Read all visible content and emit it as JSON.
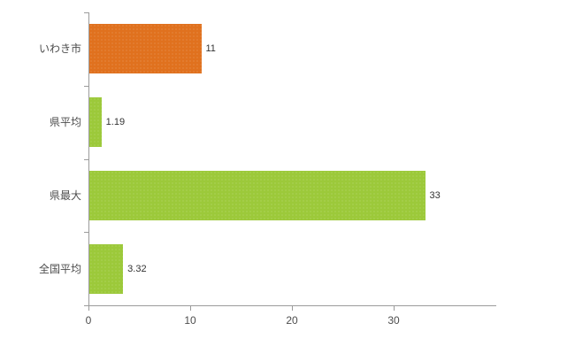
{
  "chart_data": {
    "type": "bar",
    "orientation": "horizontal",
    "title": "",
    "categories": [
      "いわき市",
      "県平均",
      "県最大",
      "全国平均"
    ],
    "values": [
      11,
      1.19,
      33,
      3.32
    ],
    "value_labels": [
      "11",
      "1.19",
      "33",
      "3.32"
    ],
    "bar_colors": [
      "#e0711e",
      "#9cc93a",
      "#9cc93a",
      "#9cc93a"
    ],
    "xlim": [
      0,
      40
    ],
    "x_ticks": [
      0,
      10,
      20,
      30
    ],
    "grid": false,
    "legend": false,
    "axis_color": "#9b9b9b",
    "label_color": "#4d4d4d",
    "background": "#ffffff"
  }
}
